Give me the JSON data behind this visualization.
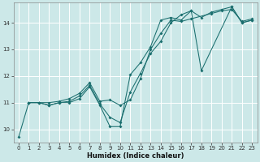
{
  "xlabel": "Humidex (Indice chaleur)",
  "bg_color": "#cce8e8",
  "grid_color": "#ffffff",
  "line_color": "#1a6e6e",
  "xlim": [
    -0.5,
    23.5
  ],
  "ylim": [
    9.5,
    14.75
  ],
  "xticks": [
    0,
    1,
    2,
    3,
    4,
    5,
    6,
    7,
    8,
    9,
    10,
    11,
    12,
    13,
    14,
    15,
    16,
    17,
    18,
    19,
    20,
    21,
    22,
    23
  ],
  "yticks": [
    10,
    11,
    12,
    13,
    14
  ],
  "lines": [
    {
      "x": [
        0,
        1,
        2,
        3,
        4,
        5,
        6,
        7,
        8,
        9,
        10,
        11,
        12,
        13,
        14,
        15,
        16,
        17,
        18,
        21,
        22,
        23
      ],
      "y": [
        9.7,
        11.0,
        11.0,
        10.9,
        11.0,
        11.0,
        11.15,
        11.6,
        10.9,
        10.1,
        10.1,
        12.05,
        12.5,
        13.1,
        14.1,
        14.2,
        14.1,
        14.45,
        12.2,
        14.6,
        14.0,
        14.1
      ]
    },
    {
      "x": [
        1,
        2,
        3,
        4,
        5,
        6,
        7,
        8,
        9,
        10,
        11,
        12,
        13,
        14,
        15,
        16,
        17,
        18,
        19,
        20,
        21,
        22,
        23
      ],
      "y": [
        11.0,
        11.0,
        10.9,
        11.0,
        11.05,
        11.25,
        11.65,
        10.95,
        10.45,
        10.25,
        11.4,
        12.1,
        12.85,
        13.3,
        14.0,
        14.3,
        14.45,
        14.2,
        14.4,
        14.5,
        14.6,
        14.0,
        14.1
      ]
    },
    {
      "x": [
        1,
        2,
        3,
        4,
        5,
        6,
        7,
        8,
        9,
        10,
        11,
        12,
        13,
        14,
        15,
        16,
        17,
        19,
        20,
        21,
        22,
        23
      ],
      "y": [
        11.0,
        11.0,
        11.0,
        11.05,
        11.15,
        11.35,
        11.75,
        11.05,
        11.1,
        10.9,
        11.1,
        11.9,
        13.0,
        13.6,
        14.1,
        14.05,
        14.15,
        14.35,
        14.45,
        14.5,
        14.05,
        14.15
      ]
    }
  ]
}
